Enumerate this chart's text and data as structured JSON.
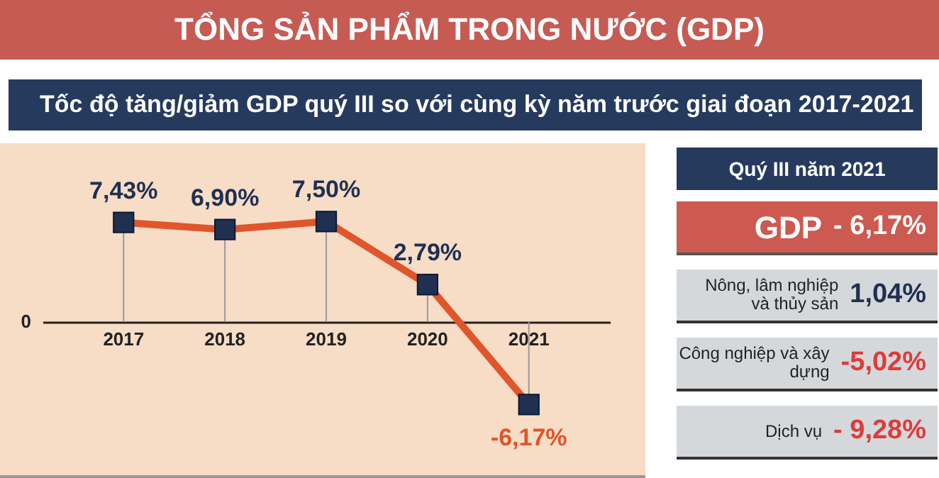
{
  "chart_data": [
    {
      "type": "line",
      "title": "TỔNG SẢN PHẨM TRONG NƯỚC (GDP)",
      "subtitle": "Tốc độ tăng/giảm GDP quý III so với cùng kỳ năm trước giai đoạn 2017-2021",
      "categories": [
        "2017",
        "2018",
        "2019",
        "2020",
        "2021"
      ],
      "series": [
        {
          "color": "#e0552a",
          "values": [
            7.43,
            6.9,
            7.5,
            2.79,
            -6.17
          ],
          "value_labels": [
            "7,43%",
            "6,90%",
            "7,50%",
            "2,79%",
            "-6,17%"
          ]
        }
      ],
      "annotations": [
        "0"
      ],
      "marker": "square",
      "line_style": "solid"
    },
    {
      "type": "other",
      "title": "Quý III năm 2021",
      "categories": [
        "GDP",
        "Nông, lâm nghiệp và thủy sản",
        "Công nghiệp và xây dựng",
        "Dịch vụ"
      ],
      "value_labels": [
        "- 6,17%",
        "1,04%",
        "-5,02%",
        "- 9,28%"
      ]
    }
  ]
}
